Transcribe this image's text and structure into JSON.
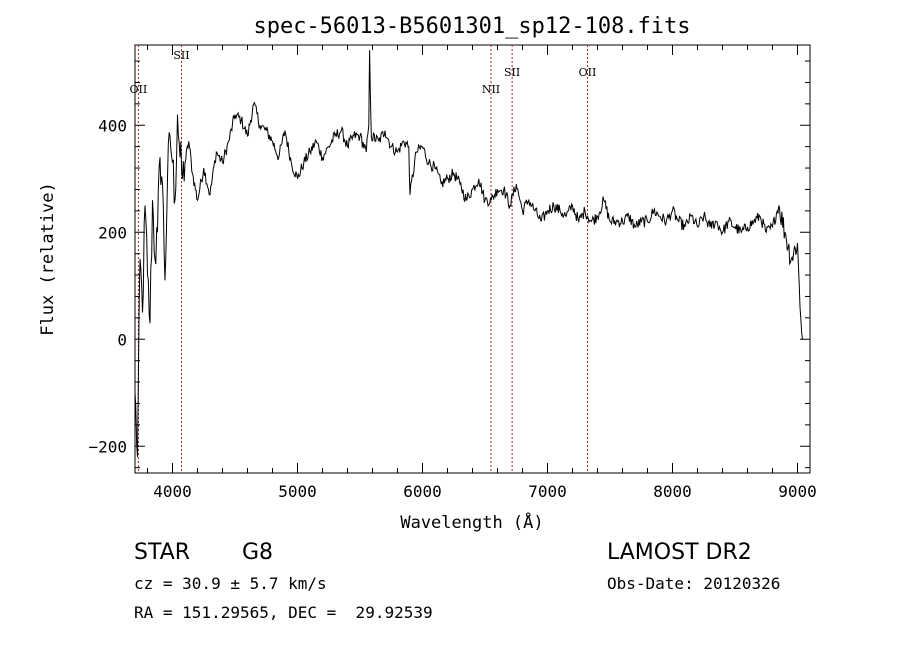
{
  "chart_data": {
    "type": "line",
    "title": "spec-56013-B5601301_sp12-108.fits",
    "xlabel": "Wavelength (Å)",
    "ylabel": "Flux (relative)",
    "xlim": [
      3700,
      9100
    ],
    "ylim": [
      -250,
      550
    ],
    "x_ticks": [
      4000,
      5000,
      6000,
      7000,
      8000,
      9000
    ],
    "y_ticks": [
      -200,
      0,
      200,
      400
    ],
    "grid": false,
    "series": [
      {
        "x": [
          3700,
          3720,
          3740,
          3760,
          3780,
          3800,
          3820,
          3840,
          3860,
          3880,
          3900,
          3920,
          3940,
          3960,
          3980,
          4000,
          4020,
          4040,
          4060,
          4080,
          4100,
          4130,
          4160,
          4200,
          4250,
          4300,
          4350,
          4400,
          4450,
          4500,
          4550,
          4600,
          4650,
          4700,
          4750,
          4800,
          4850,
          4900,
          4950,
          5000,
          5050,
          5100,
          5150,
          5200,
          5250,
          5300,
          5350,
          5400,
          5450,
          5500,
          5550,
          5570,
          5577,
          5590,
          5650,
          5700,
          5750,
          5800,
          5850,
          5890,
          5900,
          5950,
          6000,
          6050,
          6100,
          6150,
          6200,
          6250,
          6300,
          6350,
          6400,
          6450,
          6500,
          6550,
          6600,
          6650,
          6700,
          6750,
          6800,
          6850,
          6900,
          6950,
          7000,
          7050,
          7100,
          7150,
          7200,
          7250,
          7300,
          7350,
          7400,
          7450,
          7500,
          7550,
          7600,
          7650,
          7700,
          7750,
          7800,
          7850,
          7900,
          7950,
          8000,
          8050,
          8100,
          8150,
          8200,
          8250,
          8300,
          8350,
          8400,
          8450,
          8500,
          8550,
          8600,
          8650,
          8700,
          8750,
          8800,
          8850,
          8900,
          8950,
          9000,
          9020,
          9040
        ],
        "y": [
          -100,
          -220,
          150,
          50,
          250,
          120,
          30,
          260,
          150,
          200,
          340,
          290,
          110,
          300,
          380,
          330,
          260,
          420,
          340,
          300,
          330,
          370,
          310,
          260,
          320,
          270,
          350,
          330,
          370,
          420,
          410,
          380,
          440,
          400,
          390,
          370,
          340,
          390,
          330,
          300,
          330,
          350,
          370,
          340,
          360,
          380,
          390,
          360,
          380,
          380,
          350,
          400,
          540,
          380,
          370,
          390,
          360,
          350,
          370,
          360,
          270,
          350,
          360,
          330,
          320,
          290,
          300,
          310,
          290,
          260,
          280,
          300,
          260,
          260,
          280,
          280,
          250,
          290,
          240,
          260,
          240,
          220,
          240,
          250,
          240,
          230,
          250,
          220,
          240,
          220,
          230,
          260,
          220,
          220,
          220,
          230,
          210,
          220,
          220,
          240,
          230,
          220,
          240,
          220,
          210,
          230,
          210,
          230,
          210,
          220,
          200,
          220,
          210,
          200,
          210,
          220,
          230,
          200,
          210,
          250,
          200,
          150,
          180,
          60,
          0
        ]
      }
    ],
    "annotations": [
      {
        "label": "OII",
        "x": 3727
      },
      {
        "label": "SII",
        "x": 4072
      },
      {
        "label": "NII",
        "x": 6548
      },
      {
        "label": "SII",
        "x": 6717
      },
      {
        "label": "OII",
        "x": 7320
      }
    ]
  },
  "footer": {
    "class_label": "STAR",
    "subclass": "G8",
    "survey": "LAMOST DR2",
    "cz_line": "cz = 30.9 ± 5.7 km/s",
    "obs_date": "Obs-Date: 20120326",
    "radec_line": "RA = 151.29565, DEC =  29.92539"
  }
}
